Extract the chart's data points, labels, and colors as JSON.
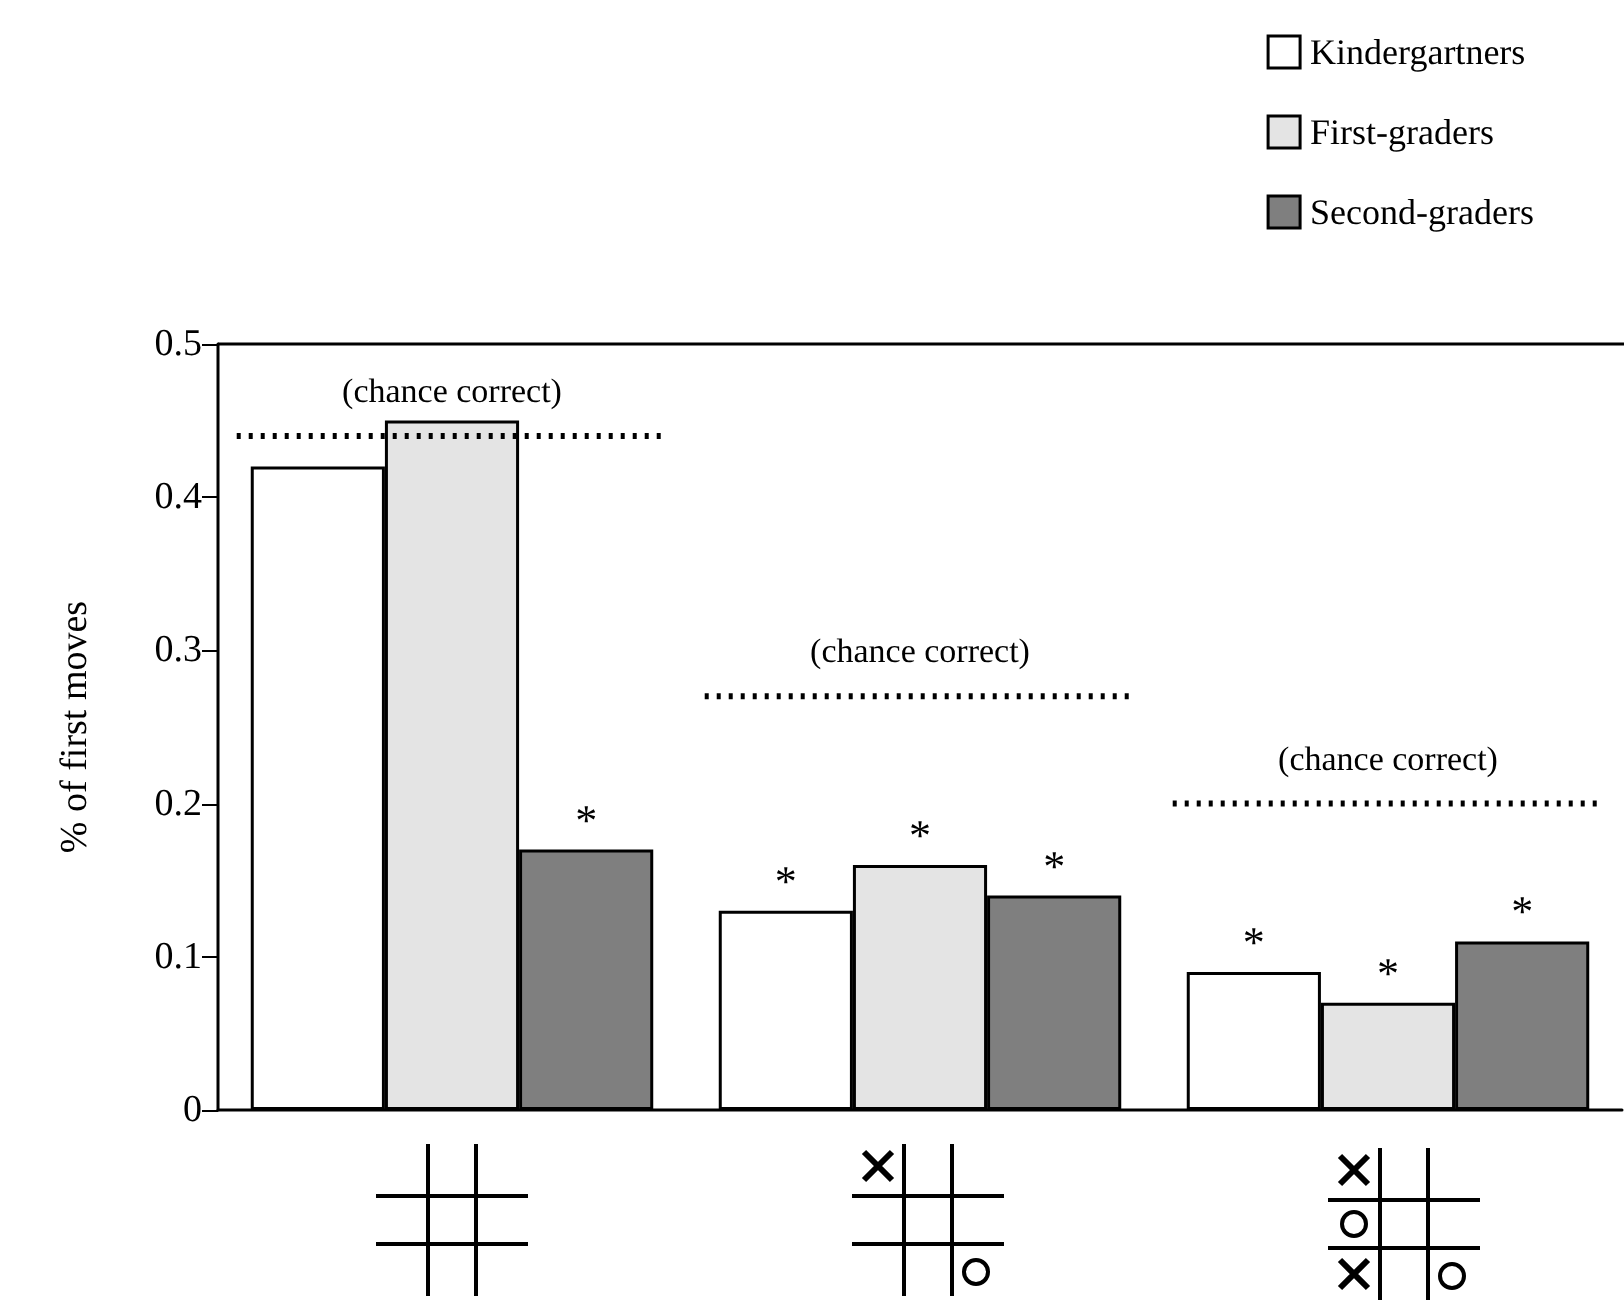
{
  "chart_data": {
    "type": "bar",
    "ylabel": "% of first moves",
    "categories": [
      null,
      null,
      null
    ],
    "series": [
      {
        "name": "Kindergartners",
        "color": "#ffffff",
        "values": [
          0.42,
          0.13,
          0.09
        ],
        "value_labels": [
          null,
          "*",
          "*"
        ]
      },
      {
        "name": "First-graders",
        "color": "#e4e4e4",
        "values": [
          0.45,
          0.16,
          0.07
        ],
        "value_labels": [
          null,
          "*",
          "*"
        ]
      },
      {
        "name": "Second-graders",
        "color": "#7f7f7f",
        "values": [
          0.17,
          0.14,
          0.11
        ],
        "value_labels": [
          "*",
          "*",
          "*"
        ]
      }
    ],
    "ylim": [
      0,
      0.5
    ],
    "yticks": [
      0,
      0.1,
      0.2,
      0.3,
      0.4,
      0.5
    ],
    "grid": false,
    "legend": "top right",
    "ref_lines": [
      {
        "axis": "y",
        "value": 0.44,
        "label": "(chance correct)",
        "line_style": "dotted"
      },
      {
        "axis": "y",
        "value": 0.27,
        "label": "(chance correct)",
        "line_style": "dotted"
      },
      {
        "axis": "y",
        "value": 0.2,
        "label": "(chance correct)",
        "line_style": "dotted"
      }
    ]
  }
}
